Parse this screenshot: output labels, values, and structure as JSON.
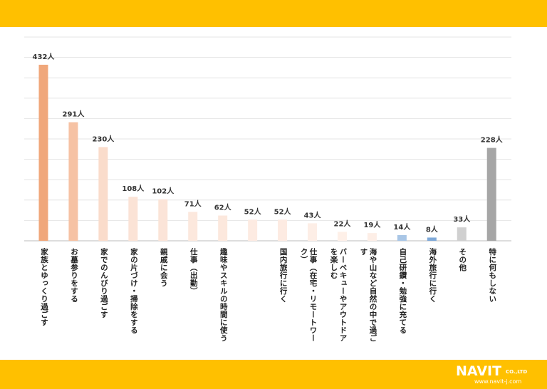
{
  "chart_data": {
    "type": "bar",
    "categories": [
      "家族とゆっくり過ごす",
      "お墓参りをする",
      "家でのんびり過ごす",
      "家の片づけ・掃除をする",
      "親戚に会う",
      "仕事（出勤）",
      "趣味やスキルの時間に使う",
      null,
      "国内旅行に行く",
      "仕事（在宅・リモートワーク）",
      "バーベキューやアウトドアを楽しむ",
      "海や山など自然の中で過ごす",
      "自己研鑽・勉強に充てる",
      "海外旅行に行く",
      "その他",
      "特に何もしない"
    ],
    "values": [
      432,
      291,
      230,
      108,
      102,
      71,
      62,
      52,
      52,
      43,
      22,
      19,
      14,
      8,
      33,
      228
    ],
    "value_labels": [
      "432人",
      "291人",
      "230人",
      "108人",
      "102人",
      "71人",
      "62人",
      "52人",
      "52人",
      "43人",
      "22人",
      "19人",
      "14人",
      "8人",
      "33人",
      "228人"
    ],
    "colors": [
      "#f0a77b",
      "#f6c2a4",
      "#fadccb",
      "#fbe3d6",
      "#fbe4d8",
      "#fce8dd",
      "#fce8dd",
      "#fdebe2",
      "#fdebe2",
      "#fdeee6",
      "#fef0e8",
      "#fdeee6",
      "#a9c6e6",
      "#7fa9d8",
      "#d0d0d0",
      "#a6a6a6"
    ],
    "ylim": [
      0,
      500
    ],
    "yticks": [
      0,
      50,
      100,
      150,
      200,
      250,
      300,
      350,
      400,
      450,
      500
    ],
    "grid": true
  },
  "logo": {
    "name": "NAVIT",
    "suffix": "CO.,LTD",
    "url": "www.navit-j.com"
  }
}
